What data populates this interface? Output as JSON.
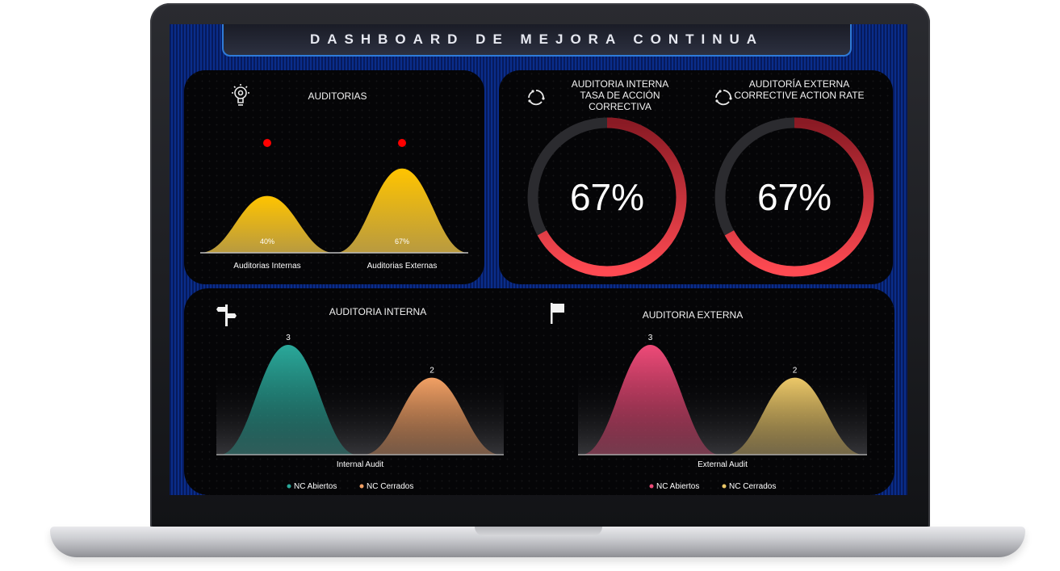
{
  "title": "DASHBOARD DE MEJORA CONTINUA",
  "auditorias": {
    "title": "AUDITORIAS",
    "chart_data": {
      "type": "area",
      "categories": [
        "Auditorias Internas",
        "Auditorias Externas"
      ],
      "values": [
        40,
        67
      ],
      "data_labels": [
        "40%",
        "67%"
      ],
      "colors": [
        "#f5c400",
        "#f5c400"
      ],
      "marker_color": "#ff0000"
    }
  },
  "internal_rate": {
    "title_lines": [
      "AUDITORIA INTERNA",
      "TASA DE ACCIÓN",
      "CORRECTIVA"
    ],
    "chart_data": {
      "type": "pie",
      "value": 67,
      "label": "67%"
    }
  },
  "external_rate": {
    "title_lines": [
      "AUDITORÍA EXTERNA",
      "CORRECTIVE ACTION RATE"
    ],
    "chart_data": {
      "type": "pie",
      "value": 67,
      "label": "67%"
    }
  },
  "internal_audit": {
    "title": "AUDITORIA INTERNA",
    "chart_data": {
      "type": "area",
      "categories": [
        "Internal Audit"
      ],
      "series": [
        {
          "name": "NC Abiertos",
          "values": [
            3
          ],
          "color": "#2aa89a"
        },
        {
          "name": "NC Cerrados",
          "values": [
            2
          ],
          "color": "#f2a064"
        }
      ],
      "data_labels": [
        "3",
        "2"
      ],
      "ylim": [
        0,
        3
      ]
    }
  },
  "external_audit": {
    "title": "AUDITORIA EXTERNA",
    "chart_data": {
      "type": "area",
      "categories": [
        "External Audit"
      ],
      "series": [
        {
          "name": "NC Abiertos",
          "values": [
            3
          ],
          "color": "#ee4a78"
        },
        {
          "name": "NC Cerrados",
          "values": [
            2
          ],
          "color": "#ecc868"
        }
      ],
      "data_labels": [
        "3",
        "2"
      ],
      "ylim": [
        0,
        3
      ]
    }
  },
  "icons": [
    "lightbulb-gear-icon",
    "refresh-icon",
    "signpost-icon",
    "flag-icon"
  ]
}
